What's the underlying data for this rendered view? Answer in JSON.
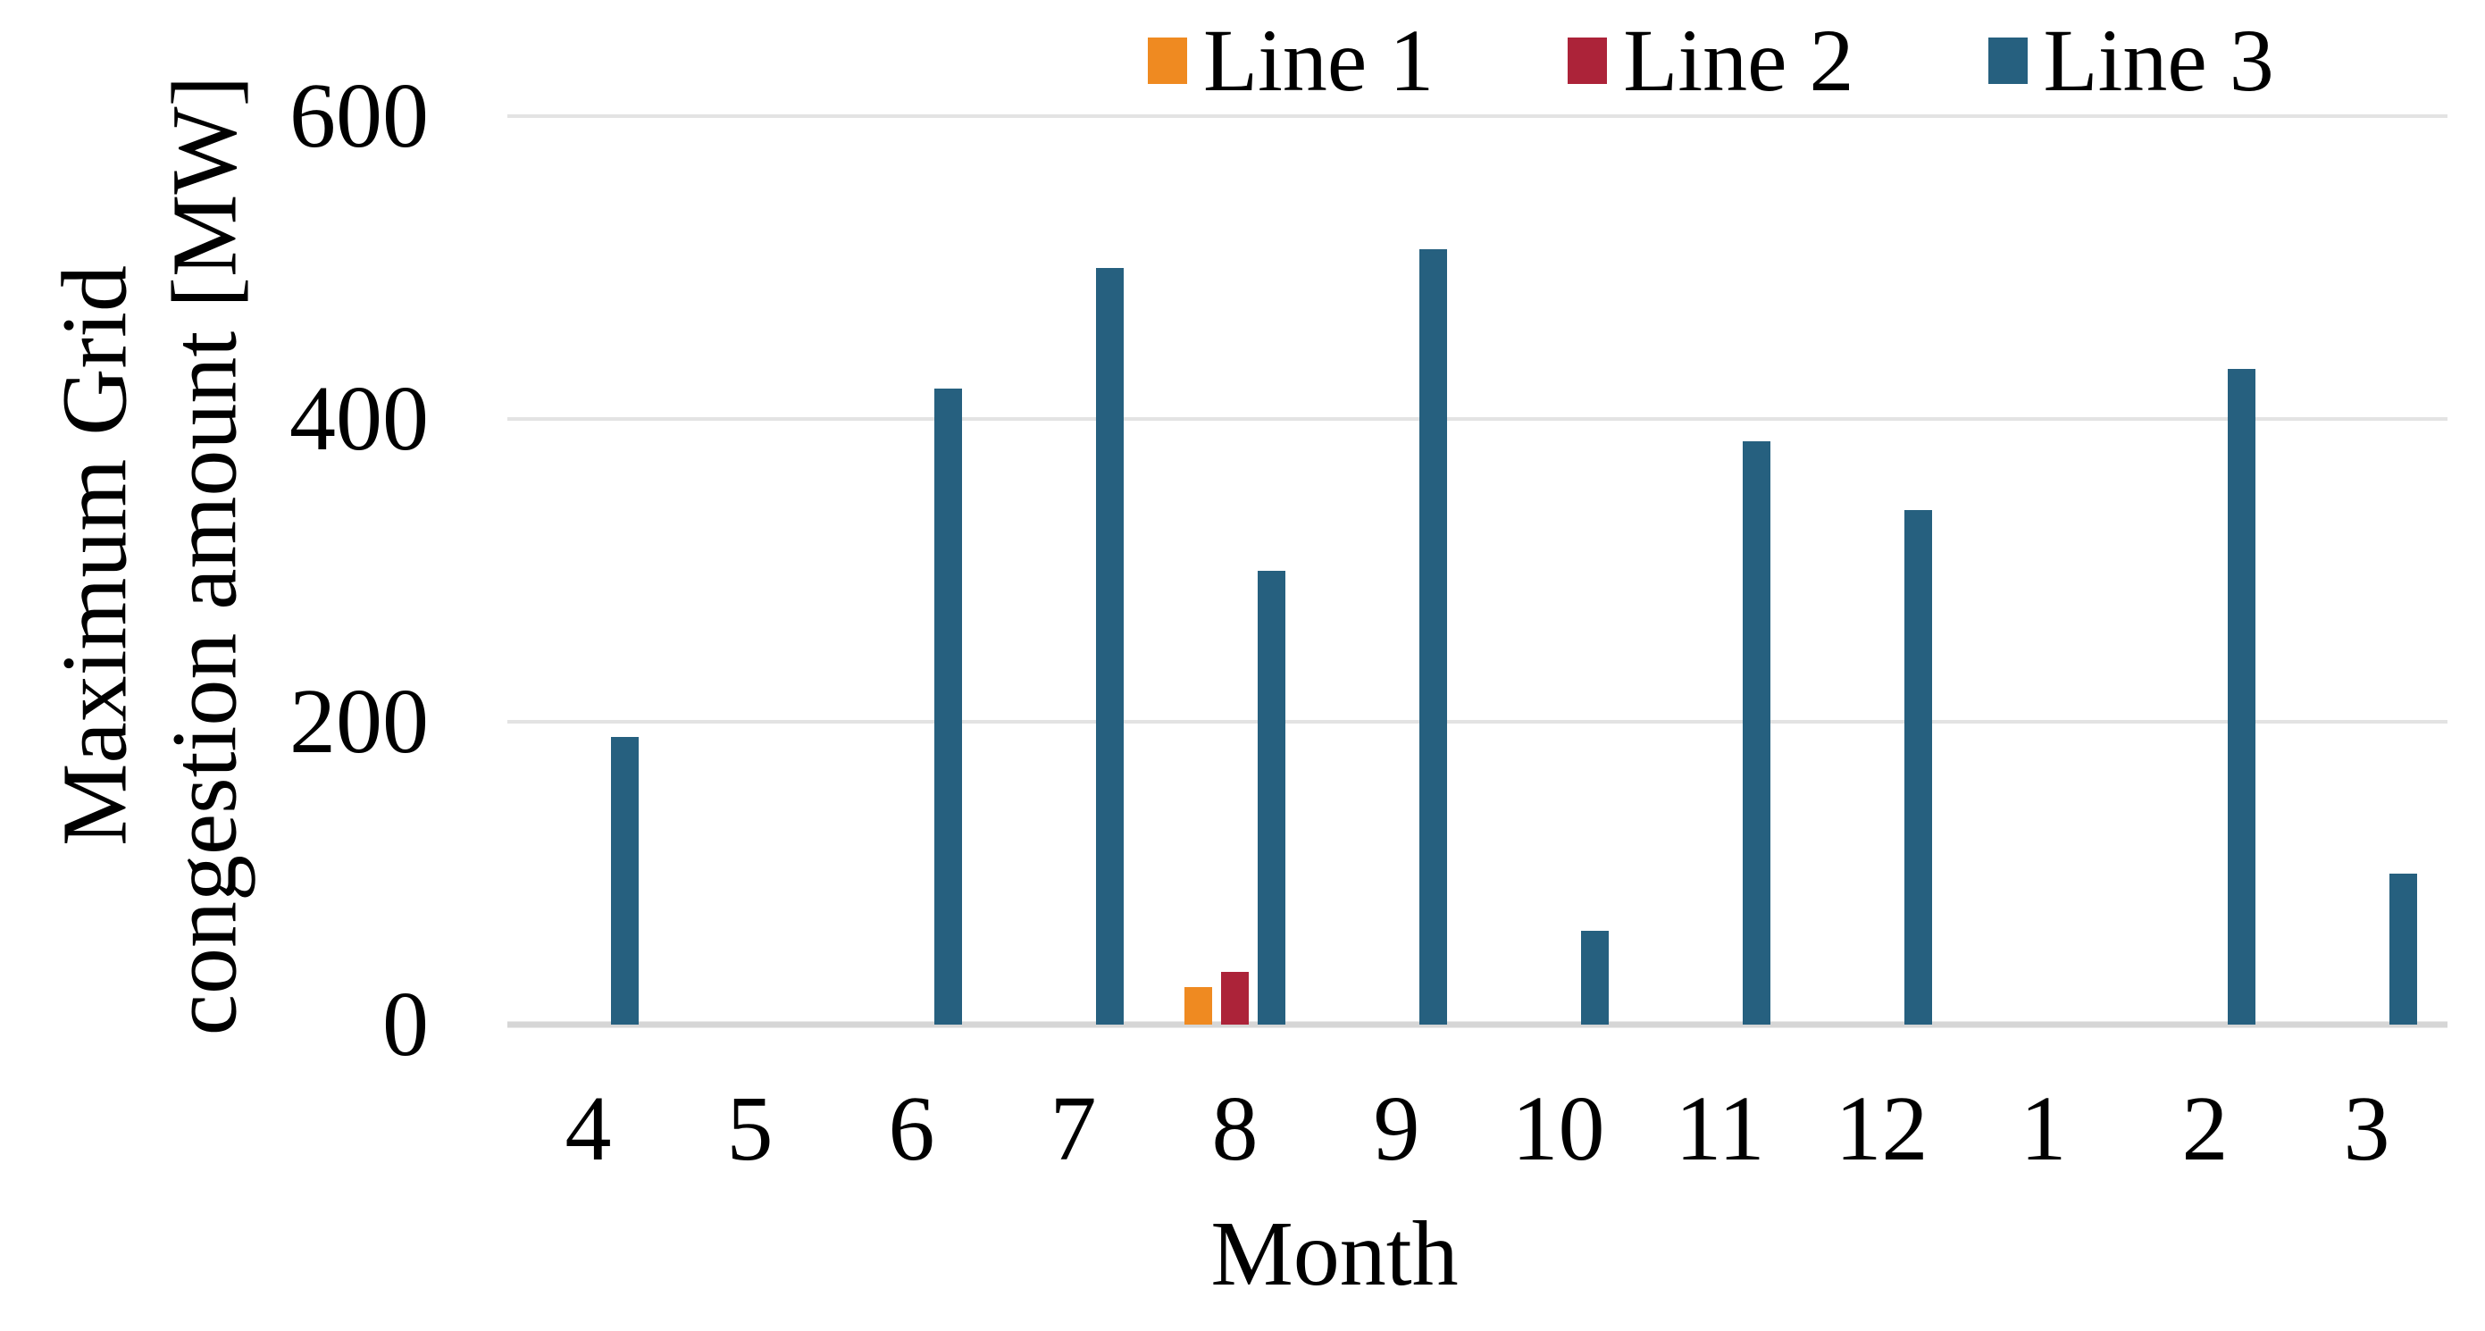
{
  "chart_data": {
    "type": "bar",
    "title": "",
    "xlabel": "Month",
    "ylabel": "Maximum Grid congestion amount [MW]",
    "ylabel_lines": [
      "Maximum Grid",
      "congestion amount [MW]"
    ],
    "categories": [
      "4",
      "5",
      "6",
      "7",
      "8",
      "9",
      "10",
      "11",
      "12",
      "1",
      "2",
      "3"
    ],
    "series": [
      {
        "name": "Line 1",
        "color": "#EF8A21",
        "values": [
          0,
          0,
          0,
          0,
          25,
          0,
          0,
          0,
          0,
          0,
          0,
          0
        ]
      },
      {
        "name": "Line 2",
        "color": "#AC2339",
        "values": [
          0,
          0,
          0,
          0,
          35,
          0,
          0,
          0,
          0,
          0,
          0,
          0
        ]
      },
      {
        "name": "Line 3",
        "color": "#26607F",
        "values": [
          190,
          0,
          420,
          500,
          300,
          512,
          62,
          385,
          340,
          0,
          433,
          100
        ]
      }
    ],
    "ylim": [
      0,
      600
    ],
    "yticks": [
      600,
      400,
      200,
      0
    ],
    "grid": "horizontal-light-gray",
    "legend_position": "top"
  },
  "colors": {
    "background": "#FFFFFF",
    "text": "#000000",
    "gridline": "#E3E3E3",
    "baseline": "#D6D6D6"
  }
}
